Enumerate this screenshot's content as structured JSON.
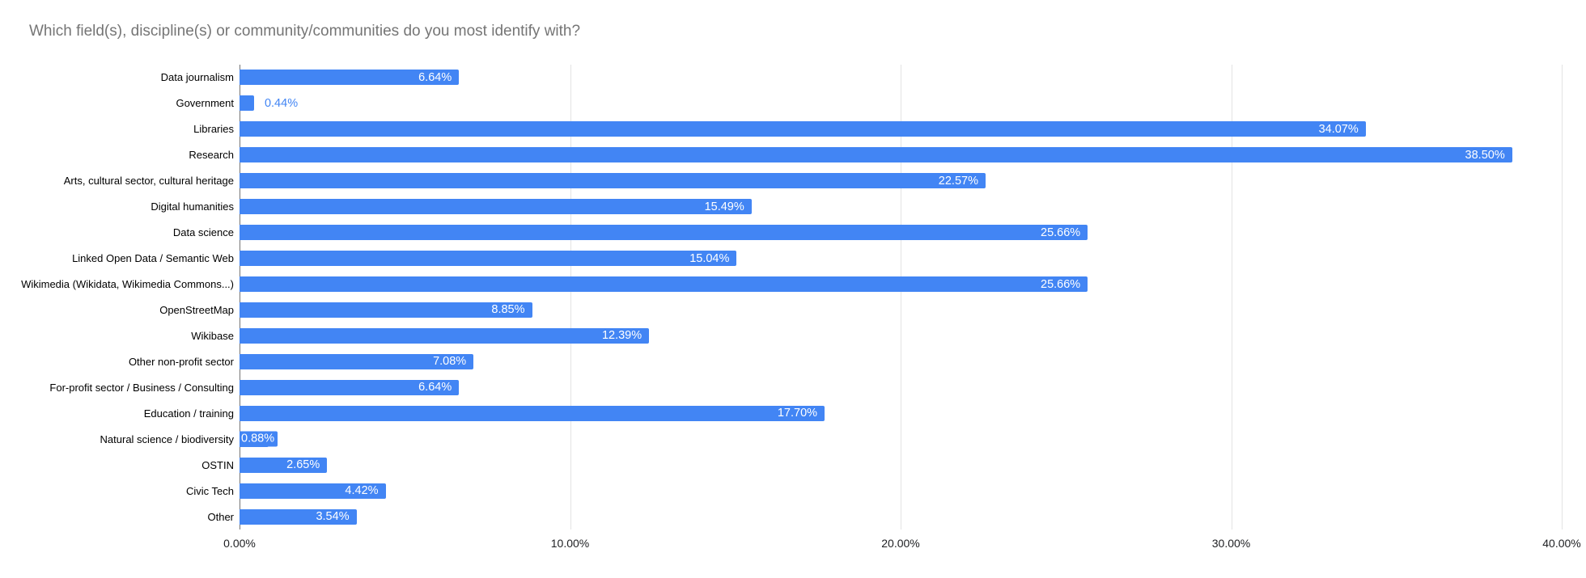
{
  "chart_data": {
    "type": "bar",
    "orientation": "horizontal",
    "title": "Which field(s), discipline(s) or community/communities do you most identify with?",
    "categories": [
      "Data journalism",
      "Government",
      "Libraries",
      "Research",
      "Arts, cultural sector, cultural heritage",
      "Digital humanities",
      "Data science",
      "Linked Open Data / Semantic Web",
      "Wikimedia (Wikidata, Wikimedia Commons...)",
      "OpenStreetMap",
      "Wikibase",
      "Other non-profit sector",
      "For-profit sector / Business / Consulting",
      "Education / training",
      "Natural science / biodiversity",
      "OSTIN",
      "Civic Tech",
      "Other"
    ],
    "values": [
      6.64,
      0.44,
      34.07,
      38.5,
      22.57,
      15.49,
      25.66,
      15.04,
      25.66,
      8.85,
      12.39,
      7.08,
      6.64,
      17.7,
      0.88,
      2.65,
      4.42,
      3.54
    ],
    "value_labels": [
      "6.64%",
      "0.44%",
      "34.07%",
      "38.50%",
      "22.57%",
      "15.49%",
      "25.66%",
      "15.04%",
      "25.66%",
      "8.85%",
      "12.39%",
      "7.08%",
      "6.64%",
      "17.70%",
      "0.88%",
      "2.65%",
      "4.42%",
      "3.54%"
    ],
    "value_label_placement": [
      "inside",
      "outside",
      "inside",
      "inside",
      "inside",
      "inside",
      "inside",
      "inside",
      "inside",
      "inside",
      "inside",
      "inside",
      "inside",
      "inside",
      "chip",
      "inside",
      "inside",
      "inside"
    ],
    "x_ticks": [
      {
        "label": "0.00%",
        "value": 0
      },
      {
        "label": "10.00%",
        "value": 10
      },
      {
        "label": "20.00%",
        "value": 20
      },
      {
        "label": "30.00%",
        "value": 30
      },
      {
        "label": "40.00%",
        "value": 40
      }
    ],
    "xlim": [
      0,
      40
    ],
    "grid": true,
    "legend": "none",
    "colors": {
      "bar": "#4285f4",
      "value_label_inside": "#ffffff",
      "value_label_outside": "#4285f4",
      "title": "#757575",
      "axis_line": "#757575",
      "gridline": "#e3e3e3",
      "category_label": "#000000",
      "tick_label": "#202124",
      "background": "#ffffff"
    }
  }
}
